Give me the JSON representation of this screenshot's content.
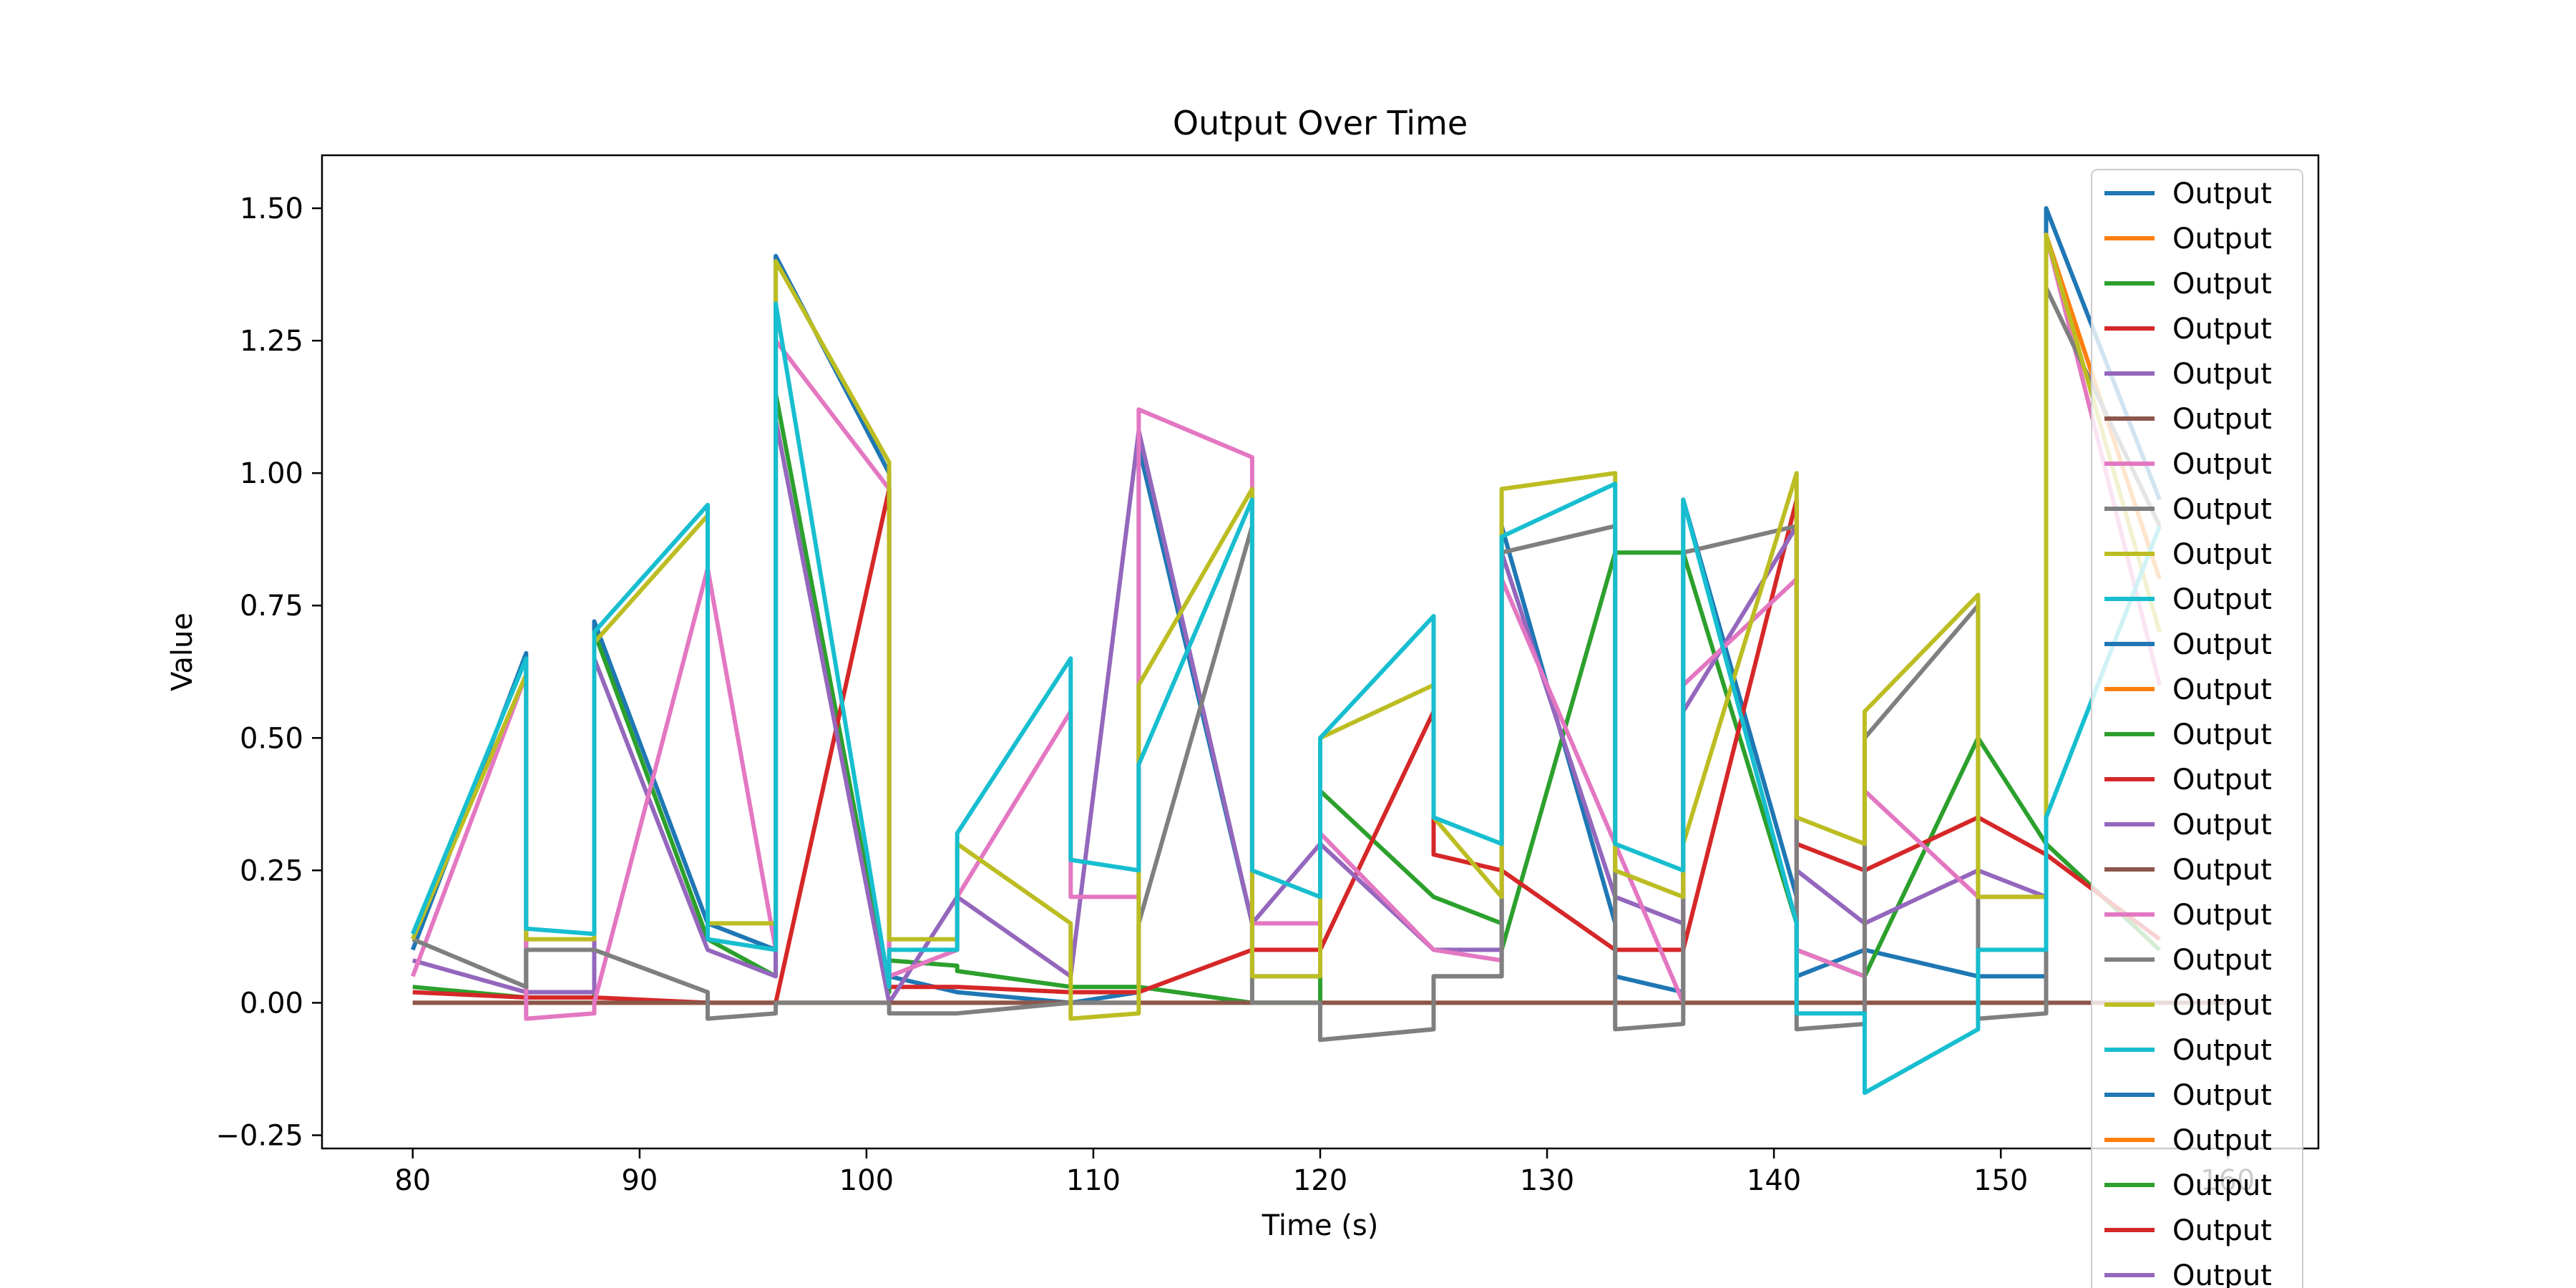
{
  "chart_data": {
    "type": "line",
    "title": "Output Over Time",
    "xlabel": "Time (s)",
    "ylabel": "Value",
    "xlim": [
      76,
      164
    ],
    "ylim": [
      -0.275,
      1.6
    ],
    "x_ticks": [
      80,
      90,
      100,
      110,
      120,
      130,
      140,
      150,
      160
    ],
    "x_tick_labels": [
      "80",
      "90",
      "100",
      "110",
      "120",
      "130",
      "140",
      "150",
      "160"
    ],
    "y_ticks": [
      -0.25,
      0.0,
      0.25,
      0.5,
      0.75,
      1.0,
      1.25,
      1.5
    ],
    "y_tick_labels": [
      "−0.25",
      "0.00",
      "0.25",
      "0.50",
      "0.75",
      "1.00",
      "1.25",
      "1.50"
    ],
    "grid": false,
    "legend_position": "top-right",
    "series": [
      {
        "name": "Output",
        "color": "#1f77b4",
        "points": [
          [
            80,
            0.1
          ],
          [
            85,
            0.66
          ],
          [
            85,
            0.02
          ],
          [
            88,
            0.02
          ],
          [
            88,
            0.72
          ],
          [
            93,
            0.15
          ],
          [
            96,
            0.1
          ],
          [
            96,
            1.41
          ],
          [
            101,
            1.0
          ],
          [
            101,
            0.05
          ],
          [
            104,
            0.02
          ],
          [
            109,
            0.0
          ],
          [
            112,
            0.02
          ],
          [
            112,
            1.05
          ],
          [
            117,
            0.15
          ],
          [
            117,
            0.05
          ],
          [
            120,
            0.05
          ],
          [
            120,
            -0.07
          ],
          [
            125,
            -0.05
          ],
          [
            125,
            0.05
          ],
          [
            128,
            0.05
          ],
          [
            128,
            0.9
          ],
          [
            133,
            0.15
          ],
          [
            133,
            0.05
          ],
          [
            136,
            0.02
          ],
          [
            136,
            0.95
          ],
          [
            141,
            0.2
          ],
          [
            141,
            0.05
          ],
          [
            144,
            0.1
          ],
          [
            149,
            0.05
          ],
          [
            152,
            0.05
          ],
          [
            152,
            1.5
          ],
          [
            157,
            0.95
          ]
        ]
      },
      {
        "name": "Output",
        "color": "#ff7f0e",
        "points": [
          [
            80,
            0.0
          ],
          [
            85,
            0.0
          ],
          [
            88,
            0.0
          ],
          [
            93,
            0.0
          ],
          [
            96,
            0.0
          ],
          [
            101,
            0.0
          ],
          [
            104,
            0.0
          ],
          [
            109,
            0.0
          ],
          [
            112,
            0.0
          ],
          [
            117,
            0.0
          ],
          [
            120,
            0.0
          ],
          [
            125,
            0.0
          ],
          [
            128,
            0.0
          ],
          [
            133,
            0.0
          ],
          [
            136,
            0.0
          ],
          [
            141,
            0.0
          ],
          [
            144,
            0.0
          ],
          [
            149,
            0.0
          ],
          [
            152,
            0.0
          ],
          [
            152,
            1.45
          ],
          [
            157,
            0.8
          ]
        ]
      },
      {
        "name": "Output",
        "color": "#2ca02c",
        "points": [
          [
            80,
            0.03
          ],
          [
            85,
            0.01
          ],
          [
            88,
            0.01
          ],
          [
            88,
            0.7
          ],
          [
            93,
            0.12
          ],
          [
            96,
            0.05
          ],
          [
            96,
            1.15
          ],
          [
            101,
            0.02
          ],
          [
            101,
            0.08
          ],
          [
            104,
            0.07
          ],
          [
            104,
            0.06
          ],
          [
            109,
            0.03
          ],
          [
            112,
            0.03
          ],
          [
            117,
            0.0
          ],
          [
            120,
            0.0
          ],
          [
            120,
            0.4
          ],
          [
            125,
            0.2
          ],
          [
            128,
            0.15
          ],
          [
            128,
            0.1
          ],
          [
            133,
            0.85
          ],
          [
            136,
            0.85
          ],
          [
            141,
            0.15
          ],
          [
            141,
            0.1
          ],
          [
            144,
            0.05
          ],
          [
            149,
            0.5
          ],
          [
            152,
            0.3
          ],
          [
            157,
            0.1
          ]
        ]
      },
      {
        "name": "Output",
        "color": "#d62728",
        "points": [
          [
            80,
            0.02
          ],
          [
            85,
            0.01
          ],
          [
            88,
            0.01
          ],
          [
            93,
            0.0
          ],
          [
            96,
            0.0
          ],
          [
            101,
            0.97
          ],
          [
            101,
            0.03
          ],
          [
            104,
            0.03
          ],
          [
            109,
            0.02
          ],
          [
            112,
            0.02
          ],
          [
            117,
            0.1
          ],
          [
            120,
            0.1
          ],
          [
            125,
            0.55
          ],
          [
            125,
            0.28
          ],
          [
            128,
            0.25
          ],
          [
            133,
            0.1
          ],
          [
            136,
            0.1
          ],
          [
            141,
            0.95
          ],
          [
            141,
            0.3
          ],
          [
            144,
            0.25
          ],
          [
            149,
            0.35
          ],
          [
            152,
            0.28
          ],
          [
            157,
            0.12
          ]
        ]
      },
      {
        "name": "Output",
        "color": "#9467bd",
        "points": [
          [
            80,
            0.08
          ],
          [
            85,
            0.02
          ],
          [
            88,
            0.02
          ],
          [
            88,
            0.65
          ],
          [
            93,
            0.1
          ],
          [
            96,
            0.05
          ],
          [
            96,
            1.1
          ],
          [
            101,
            0.0
          ],
          [
            104,
            0.2
          ],
          [
            109,
            0.05
          ],
          [
            112,
            1.08
          ],
          [
            117,
            0.15
          ],
          [
            120,
            0.3
          ],
          [
            125,
            0.1
          ],
          [
            128,
            0.1
          ],
          [
            128,
            0.85
          ],
          [
            133,
            0.2
          ],
          [
            136,
            0.15
          ],
          [
            136,
            0.55
          ],
          [
            141,
            0.9
          ],
          [
            141,
            0.25
          ],
          [
            144,
            0.15
          ],
          [
            149,
            0.25
          ],
          [
            152,
            0.2
          ]
        ]
      },
      {
        "name": "Output",
        "color": "#8c564b",
        "points": [
          [
            80,
            0.0
          ],
          [
            160,
            0.0
          ]
        ]
      },
      {
        "name": "Output",
        "color": "#e377c2",
        "points": [
          [
            80,
            0.05
          ],
          [
            85,
            0.62
          ],
          [
            85,
            -0.03
          ],
          [
            88,
            -0.02
          ],
          [
            88,
            0.0
          ],
          [
            93,
            0.82
          ],
          [
            96,
            0.1
          ],
          [
            96,
            1.25
          ],
          [
            101,
            0.97
          ],
          [
            101,
            0.05
          ],
          [
            104,
            0.1
          ],
          [
            104,
            0.2
          ],
          [
            109,
            0.55
          ],
          [
            109,
            0.2
          ],
          [
            112,
            0.2
          ],
          [
            112,
            1.12
          ],
          [
            117,
            1.03
          ],
          [
            117,
            0.15
          ],
          [
            120,
            0.15
          ],
          [
            120,
            0.32
          ],
          [
            125,
            0.1
          ],
          [
            128,
            0.08
          ],
          [
            128,
            0.8
          ],
          [
            133,
            0.3
          ],
          [
            136,
            0.0
          ],
          [
            136,
            0.6
          ],
          [
            141,
            0.8
          ],
          [
            141,
            0.1
          ],
          [
            144,
            0.05
          ],
          [
            144,
            0.4
          ],
          [
            149,
            0.2
          ],
          [
            152,
            0.2
          ],
          [
            152,
            1.45
          ],
          [
            157,
            0.6
          ]
        ]
      },
      {
        "name": "Output",
        "color": "#7f7f7f",
        "points": [
          [
            80,
            0.12
          ],
          [
            85,
            0.03
          ],
          [
            85,
            0.1
          ],
          [
            88,
            0.1
          ],
          [
            93,
            0.02
          ],
          [
            93,
            -0.03
          ],
          [
            96,
            -0.02
          ],
          [
            96,
            0.0
          ],
          [
            101,
            0.0
          ],
          [
            101,
            -0.02
          ],
          [
            104,
            -0.02
          ],
          [
            109,
            0.0
          ],
          [
            112,
            0.0
          ],
          [
            112,
            0.15
          ],
          [
            117,
            0.9
          ],
          [
            117,
            0.0
          ],
          [
            120,
            0.0
          ],
          [
            120,
            -0.07
          ],
          [
            125,
            -0.05
          ],
          [
            125,
            0.05
          ],
          [
            128,
            0.05
          ],
          [
            128,
            0.85
          ],
          [
            133,
            0.9
          ],
          [
            133,
            -0.05
          ],
          [
            136,
            -0.04
          ],
          [
            136,
            0.85
          ],
          [
            141,
            0.9
          ],
          [
            141,
            -0.05
          ],
          [
            144,
            -0.04
          ],
          [
            144,
            0.5
          ],
          [
            149,
            0.75
          ],
          [
            149,
            -0.03
          ],
          [
            152,
            -0.02
          ],
          [
            152,
            1.35
          ],
          [
            157,
            0.9
          ]
        ]
      },
      {
        "name": "Output",
        "color": "#bcbd22",
        "points": [
          [
            80,
            0.12
          ],
          [
            85,
            0.62
          ],
          [
            85,
            0.12
          ],
          [
            88,
            0.12
          ],
          [
            88,
            0.68
          ],
          [
            93,
            0.92
          ],
          [
            93,
            0.15
          ],
          [
            96,
            0.15
          ],
          [
            96,
            1.4
          ],
          [
            101,
            1.02
          ],
          [
            101,
            0.12
          ],
          [
            104,
            0.12
          ],
          [
            104,
            0.3
          ],
          [
            109,
            0.15
          ],
          [
            109,
            -0.03
          ],
          [
            112,
            -0.02
          ],
          [
            112,
            0.6
          ],
          [
            117,
            0.97
          ],
          [
            117,
            0.05
          ],
          [
            120,
            0.05
          ],
          [
            120,
            0.5
          ],
          [
            125,
            0.6
          ],
          [
            125,
            0.35
          ],
          [
            128,
            0.2
          ],
          [
            128,
            0.97
          ],
          [
            133,
            1.0
          ],
          [
            133,
            0.25
          ],
          [
            136,
            0.2
          ],
          [
            136,
            0.3
          ],
          [
            141,
            1.0
          ],
          [
            141,
            0.35
          ],
          [
            144,
            0.3
          ],
          [
            144,
            0.55
          ],
          [
            149,
            0.77
          ],
          [
            149,
            0.2
          ],
          [
            152,
            0.2
          ],
          [
            152,
            1.45
          ],
          [
            157,
            0.7
          ]
        ]
      },
      {
        "name": "Output",
        "color": "#17becf",
        "points": [
          [
            80,
            0.13
          ],
          [
            85,
            0.65
          ],
          [
            85,
            0.14
          ],
          [
            88,
            0.13
          ],
          [
            88,
            0.7
          ],
          [
            93,
            0.94
          ],
          [
            93,
            0.12
          ],
          [
            96,
            0.1
          ],
          [
            96,
            1.32
          ],
          [
            101,
            0.03
          ],
          [
            101,
            0.1
          ],
          [
            104,
            0.1
          ],
          [
            104,
            0.32
          ],
          [
            109,
            0.65
          ],
          [
            109,
            0.27
          ],
          [
            112,
            0.25
          ],
          [
            112,
            0.45
          ],
          [
            117,
            0.95
          ],
          [
            117,
            0.25
          ],
          [
            120,
            0.2
          ],
          [
            120,
            0.5
          ],
          [
            125,
            0.73
          ],
          [
            125,
            0.35
          ],
          [
            128,
            0.3
          ],
          [
            128,
            0.88
          ],
          [
            133,
            0.98
          ],
          [
            133,
            0.3
          ],
          [
            136,
            0.25
          ],
          [
            136,
            0.95
          ],
          [
            141,
            0.15
          ],
          [
            141,
            -0.02
          ],
          [
            144,
            -0.02
          ],
          [
            144,
            -0.17
          ],
          [
            149,
            -0.05
          ],
          [
            149,
            0.1
          ],
          [
            152,
            0.1
          ],
          [
            152,
            0.35
          ],
          [
            157,
            0.9
          ]
        ]
      },
      {
        "name": "Output",
        "color": "#1f77b4",
        "points": []
      },
      {
        "name": "Output",
        "color": "#ff7f0e",
        "points": []
      },
      {
        "name": "Output",
        "color": "#2ca02c",
        "points": []
      },
      {
        "name": "Output",
        "color": "#d62728",
        "points": []
      },
      {
        "name": "Output",
        "color": "#9467bd",
        "points": []
      },
      {
        "name": "Output",
        "color": "#8c564b",
        "points": []
      },
      {
        "name": "Output",
        "color": "#e377c2",
        "points": []
      },
      {
        "name": "Output",
        "color": "#7f7f7f",
        "points": []
      },
      {
        "name": "Output",
        "color": "#bcbd22",
        "points": []
      },
      {
        "name": "Output",
        "color": "#17becf",
        "points": []
      },
      {
        "name": "Output",
        "color": "#1f77b4",
        "points": []
      },
      {
        "name": "Output",
        "color": "#ff7f0e",
        "points": []
      },
      {
        "name": "Output",
        "color": "#2ca02c",
        "points": []
      },
      {
        "name": "Output",
        "color": "#d62728",
        "points": []
      },
      {
        "name": "Output",
        "color": "#9467bd",
        "points": []
      }
    ]
  }
}
